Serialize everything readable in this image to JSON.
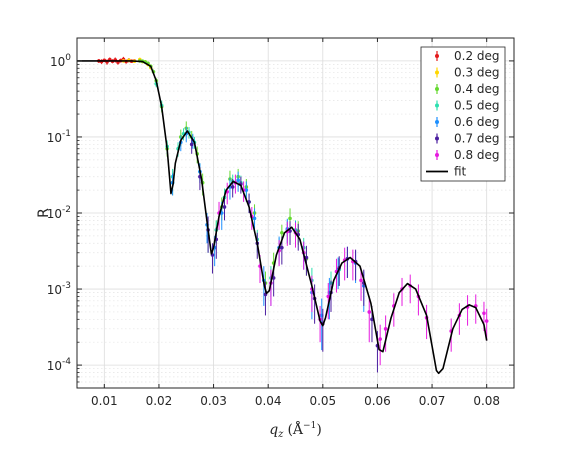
{
  "chart_data": {
    "type": "scatter",
    "title": "",
    "xlabel": "q_z (Å^-1)",
    "xlabel_main": "q",
    "xlabel_sub": "z",
    "xlabel_units": "(Å",
    "xlabel_units_exp": "−1",
    "xlabel_units_close": ")",
    "ylabel": "R",
    "x_scale": "linear",
    "y_scale": "log",
    "xlim": [
      0.005,
      0.085
    ],
    "ylim": [
      5e-05,
      2.0
    ],
    "grid": true,
    "legend_position": "top-right",
    "xticks": [
      {
        "value": 0.01,
        "label": "0.01"
      },
      {
        "value": 0.02,
        "label": "0.02"
      },
      {
        "value": 0.03,
        "label": "0.03"
      },
      {
        "value": 0.04,
        "label": "0.04"
      },
      {
        "value": 0.05,
        "label": "0.05"
      },
      {
        "value": 0.06,
        "label": "0.06"
      },
      {
        "value": 0.07,
        "label": "0.07"
      },
      {
        "value": 0.08,
        "label": "0.08"
      }
    ],
    "yticks": [
      {
        "value": 1,
        "base": "10",
        "exp": "0"
      },
      {
        "value": 0.1,
        "base": "10",
        "exp": "-1"
      },
      {
        "value": 0.01,
        "base": "10",
        "exp": "-2"
      },
      {
        "value": 0.001,
        "base": "10",
        "exp": "-3"
      },
      {
        "value": 0.0001,
        "base": "10",
        "exp": "-4"
      }
    ],
    "fit": {
      "name": "fit",
      "color": "#000000",
      "x": [
        0.005,
        0.01,
        0.015,
        0.017,
        0.0185,
        0.0195,
        0.0205,
        0.0215,
        0.0222,
        0.0226,
        0.023,
        0.024,
        0.0252,
        0.0265,
        0.0278,
        0.029,
        0.0296,
        0.03,
        0.031,
        0.0323,
        0.0336,
        0.035,
        0.0365,
        0.038,
        0.0393,
        0.0397,
        0.0402,
        0.0415,
        0.043,
        0.0443,
        0.0458,
        0.048,
        0.0495,
        0.05,
        0.0505,
        0.052,
        0.0535,
        0.055,
        0.0568,
        0.0588,
        0.0603,
        0.061,
        0.0625,
        0.064,
        0.0655,
        0.067,
        0.069,
        0.0708,
        0.0712,
        0.072,
        0.0738,
        0.0755,
        0.0768,
        0.078,
        0.0795,
        0.08
      ],
      "y": [
        1.0,
        1.0,
        1.0,
        0.98,
        0.85,
        0.55,
        0.25,
        0.07,
        0.018,
        0.024,
        0.045,
        0.09,
        0.12,
        0.085,
        0.028,
        0.006,
        0.0029,
        0.0035,
        0.009,
        0.02,
        0.026,
        0.023,
        0.012,
        0.004,
        0.0011,
        0.00088,
        0.00095,
        0.0028,
        0.0055,
        0.0065,
        0.0045,
        0.0011,
        0.00038,
        0.00033,
        0.00042,
        0.0013,
        0.0022,
        0.0026,
        0.002,
        0.00065,
        0.00016,
        0.00015,
        0.00042,
        0.0009,
        0.00118,
        0.001,
        0.00045,
        8.5e-05,
        7.8e-05,
        9e-05,
        0.0003,
        0.00054,
        0.00062,
        0.00057,
        0.00034,
        0.00021
      ]
    },
    "series": [
      {
        "name": "0.2 deg",
        "color": "#e31a1c",
        "x": [
          0.009,
          0.0095,
          0.01,
          0.0105,
          0.011,
          0.0115,
          0.012,
          0.0125,
          0.013,
          0.0135,
          0.014,
          0.0145,
          0.015,
          0.0155
        ],
        "y": [
          1.0,
          0.98,
          1.02,
          0.97,
          1.04,
          0.99,
          1.03,
          0.96,
          1.01,
          1.05,
          0.98,
          1.02,
          0.99,
          1.0
        ],
        "err": [
          0.06,
          0.07,
          0.05,
          0.08,
          0.07,
          0.06,
          0.08,
          0.07,
          0.06,
          0.08,
          0.06,
          0.07,
          0.05,
          0.05
        ]
      },
      {
        "name": "0.3 deg",
        "color": "#ffd700",
        "x": [
          0.0135,
          0.0145,
          0.0155,
          0.0165,
          0.017,
          0.0175,
          0.018,
          0.0185
        ],
        "y": [
          1.0,
          1.02,
          0.99,
          1.04,
          0.98,
          0.97,
          0.9,
          0.82
        ],
        "err": [
          0.05,
          0.06,
          0.05,
          0.06,
          0.05,
          0.05,
          0.05,
          0.05
        ]
      },
      {
        "name": "0.4 deg",
        "color": "#66d930",
        "x": [
          0.0165,
          0.017,
          0.0175,
          0.018,
          0.0185,
          0.019,
          0.0195,
          0.0205,
          0.0215,
          0.0225,
          0.024,
          0.025,
          0.026,
          0.027,
          0.028,
          0.029,
          0.0305,
          0.0315,
          0.033,
          0.0345,
          0.036,
          0.0375,
          0.0395,
          0.041,
          0.0425,
          0.044,
          0.0455,
          0.047
        ],
        "y": [
          1.0,
          0.99,
          0.97,
          0.93,
          0.85,
          0.72,
          0.55,
          0.25,
          0.07,
          0.025,
          0.1,
          0.13,
          0.1,
          0.06,
          0.025,
          0.006,
          0.006,
          0.012,
          0.028,
          0.03,
          0.022,
          0.01,
          0.0012,
          0.0022,
          0.0055,
          0.0085,
          0.0058,
          0.0025
        ],
        "err": [
          0.04,
          0.04,
          0.04,
          0.05,
          0.05,
          0.05,
          0.05,
          0.04,
          0.015,
          0.008,
          0.025,
          0.03,
          0.02,
          0.015,
          0.008,
          0.002,
          0.002,
          0.004,
          0.008,
          0.008,
          0.006,
          0.003,
          0.0005,
          0.0008,
          0.0015,
          0.003,
          0.002,
          0.001
        ]
      },
      {
        "name": "0.5 deg",
        "color": "#2ee0b0",
        "x": [
          0.0195,
          0.0205,
          0.0215,
          0.0225,
          0.0235,
          0.0245,
          0.0255,
          0.0265,
          0.0275,
          0.029,
          0.0305,
          0.032,
          0.0335,
          0.035,
          0.0365,
          0.038,
          0.0405,
          0.042,
          0.0435,
          0.045,
          0.0465,
          0.048,
          0.0515,
          0.053
        ],
        "y": [
          0.5,
          0.26,
          0.075,
          0.03,
          0.07,
          0.11,
          0.115,
          0.085,
          0.035,
          0.005,
          0.006,
          0.016,
          0.026,
          0.025,
          0.014,
          0.0045,
          0.0014,
          0.0035,
          0.006,
          0.006,
          0.0035,
          0.0013,
          0.0012,
          0.0018
        ],
        "err": [
          0.05,
          0.04,
          0.015,
          0.008,
          0.015,
          0.02,
          0.02,
          0.015,
          0.01,
          0.002,
          0.002,
          0.005,
          0.006,
          0.006,
          0.004,
          0.0015,
          0.0006,
          0.0012,
          0.002,
          0.002,
          0.0012,
          0.0006,
          0.0005,
          0.0007
        ]
      },
      {
        "name": "0.6 deg",
        "color": "#1e90ff",
        "x": [
          0.0225,
          0.024,
          0.025,
          0.0262,
          0.0275,
          0.0288,
          0.0302,
          0.0315,
          0.033,
          0.0345,
          0.036,
          0.0375,
          0.0392,
          0.0405,
          0.042,
          0.0435,
          0.045,
          0.0465,
          0.048,
          0.0498,
          0.0512,
          0.0528,
          0.0545,
          0.056,
          0.0575
        ],
        "y": [
          0.025,
          0.085,
          0.11,
          0.09,
          0.035,
          0.007,
          0.0035,
          0.01,
          0.022,
          0.027,
          0.02,
          0.0085,
          0.0013,
          0.0012,
          0.0035,
          0.0062,
          0.0058,
          0.003,
          0.0009,
          0.00045,
          0.0009,
          0.0018,
          0.0025,
          0.0022,
          0.0011
        ],
        "err": [
          0.008,
          0.02,
          0.025,
          0.02,
          0.01,
          0.003,
          0.0015,
          0.004,
          0.007,
          0.008,
          0.006,
          0.003,
          0.0007,
          0.0006,
          0.0014,
          0.0022,
          0.002,
          0.0012,
          0.0005,
          0.0003,
          0.0005,
          0.0008,
          0.0011,
          0.001,
          0.0006
        ]
      },
      {
        "name": "0.7 deg",
        "color": "#4b1fa0",
        "x": [
          0.026,
          0.0275,
          0.029,
          0.0298,
          0.0305,
          0.032,
          0.0335,
          0.035,
          0.0365,
          0.038,
          0.0395,
          0.041,
          0.0425,
          0.044,
          0.0455,
          0.047,
          0.0485,
          0.05,
          0.0515,
          0.053,
          0.0545,
          0.056,
          0.0575,
          0.059,
          0.06
        ],
        "y": [
          0.08,
          0.03,
          0.006,
          0.0028,
          0.0045,
          0.012,
          0.022,
          0.024,
          0.014,
          0.004,
          0.00085,
          0.0014,
          0.0035,
          0.0058,
          0.0052,
          0.0026,
          0.00075,
          0.00035,
          0.0009,
          0.0019,
          0.0025,
          0.0023,
          0.0012,
          0.0004,
          0.00018
        ],
        "err": [
          0.02,
          0.01,
          0.003,
          0.0012,
          0.002,
          0.004,
          0.006,
          0.006,
          0.004,
          0.0015,
          0.0004,
          0.0006,
          0.0014,
          0.002,
          0.002,
          0.0011,
          0.0004,
          0.0002,
          0.0004,
          0.0008,
          0.0011,
          0.001,
          0.0006,
          0.0002,
          0.0001
        ]
      },
      {
        "name": "0.8 deg",
        "color": "#e61adf",
        "x": [
          0.031,
          0.0325,
          0.034,
          0.0355,
          0.037,
          0.0385,
          0.0405,
          0.042,
          0.0435,
          0.045,
          0.0465,
          0.048,
          0.0495,
          0.051,
          0.0525,
          0.054,
          0.0555,
          0.057,
          0.0585,
          0.0605,
          0.0615,
          0.063,
          0.0645,
          0.066,
          0.0675,
          0.069,
          0.0735,
          0.075,
          0.0765,
          0.078,
          0.0795,
          0.08
        ],
        "y": [
          0.01,
          0.019,
          0.025,
          0.02,
          0.009,
          0.002,
          0.0012,
          0.0032,
          0.0057,
          0.0055,
          0.003,
          0.001,
          0.0004,
          0.0008,
          0.0017,
          0.0024,
          0.0023,
          0.0013,
          0.0005,
          0.00022,
          0.0003,
          0.0006,
          0.001,
          0.0011,
          0.0008,
          0.00042,
          0.00028,
          0.00045,
          0.00058,
          0.0006,
          0.00048,
          0.00038
        ],
        "err": [
          0.004,
          0.006,
          0.007,
          0.006,
          0.003,
          0.0008,
          0.0006,
          0.0012,
          0.002,
          0.002,
          0.0012,
          0.0005,
          0.0002,
          0.0004,
          0.0008,
          0.0011,
          0.001,
          0.0006,
          0.0003,
          0.00012,
          0.00015,
          0.00028,
          0.0004,
          0.00045,
          0.00035,
          0.0002,
          0.00013,
          0.0002,
          0.00025,
          0.00025,
          0.0002,
          0.00017
        ]
      }
    ]
  }
}
